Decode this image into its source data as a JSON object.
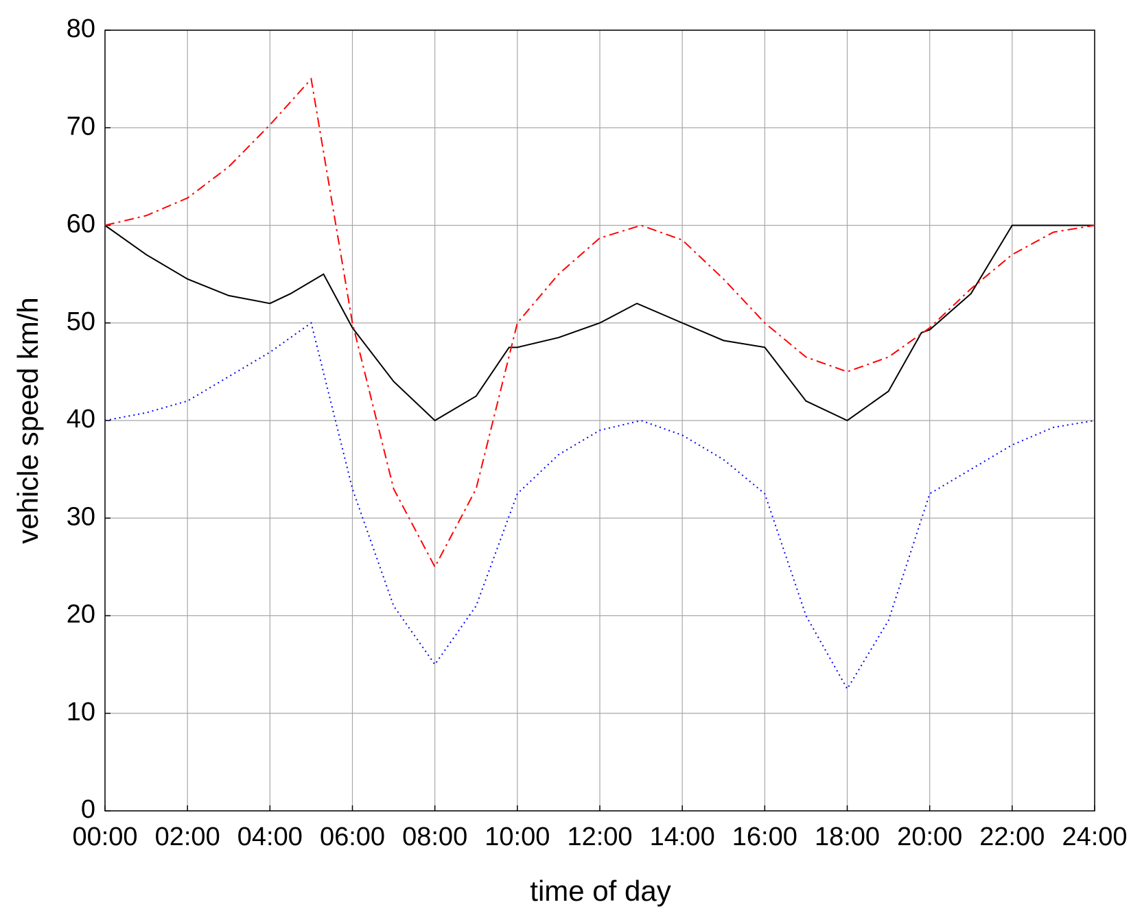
{
  "chart_data": {
    "type": "line",
    "xlabel": "time of day",
    "ylabel": "vehicle speed km/h",
    "xlim": [
      0,
      24
    ],
    "ylim": [
      0,
      80
    ],
    "xticks": [
      {
        "value": 0,
        "label": "00:00"
      },
      {
        "value": 2,
        "label": "02:00"
      },
      {
        "value": 4,
        "label": "04:00"
      },
      {
        "value": 6,
        "label": "06:00"
      },
      {
        "value": 8,
        "label": "08:00"
      },
      {
        "value": 10,
        "label": "10:00"
      },
      {
        "value": 12,
        "label": "12:00"
      },
      {
        "value": 14,
        "label": "14:00"
      },
      {
        "value": 16,
        "label": "16:00"
      },
      {
        "value": 18,
        "label": "18:00"
      },
      {
        "value": 20,
        "label": "20:00"
      },
      {
        "value": 22,
        "label": "22:00"
      },
      {
        "value": 24,
        "label": "24:00"
      }
    ],
    "yticks": [
      0,
      10,
      20,
      30,
      40,
      50,
      60,
      70,
      80
    ],
    "grid": true,
    "series": [
      {
        "color": "#000000",
        "dash": "solid",
        "x": [
          0,
          1,
          2,
          3,
          4,
          4.5,
          5.3,
          6,
          7,
          8,
          9,
          9.8,
          10,
          11,
          12,
          12.9,
          14,
          15,
          16,
          17,
          18,
          19,
          19.8,
          20,
          21,
          22,
          24
        ],
        "values": [
          60,
          57,
          54.5,
          52.8,
          52,
          53,
          55,
          49.5,
          44,
          40,
          42.5,
          47.5,
          47.5,
          48.5,
          50,
          52,
          50,
          48.2,
          47.5,
          42,
          40,
          43,
          49,
          49.3,
          53,
          60,
          60
        ]
      },
      {
        "color": "#ff0000",
        "dash": "dashdot",
        "x": [
          0,
          1,
          2,
          3,
          4,
          5,
          6,
          7,
          8,
          9,
          10,
          11,
          12,
          13,
          14,
          15,
          16,
          17,
          18,
          19,
          20,
          21,
          22,
          23,
          24
        ],
        "values": [
          60,
          61,
          62.8,
          66,
          70.3,
          75,
          50,
          33,
          25,
          33,
          50,
          55,
          58.7,
          60,
          58.5,
          54.5,
          50,
          46.5,
          45,
          46.5,
          49.5,
          53.5,
          57,
          59.3,
          60
        ]
      },
      {
        "color": "#0000ff",
        "dash": "dotted",
        "x": [
          0,
          1,
          2,
          3,
          4,
          5,
          6,
          7,
          8,
          9,
          10,
          11,
          12,
          13,
          14,
          15,
          16,
          17,
          18,
          19,
          20,
          21,
          22,
          23,
          24
        ],
        "values": [
          40,
          40.8,
          42,
          44.5,
          47,
          50,
          33,
          21,
          15,
          21,
          32.5,
          36.5,
          39,
          40,
          38.5,
          36,
          32.5,
          20,
          12.5,
          19.5,
          32.5,
          35,
          37.5,
          39.3,
          40
        ]
      }
    ]
  }
}
